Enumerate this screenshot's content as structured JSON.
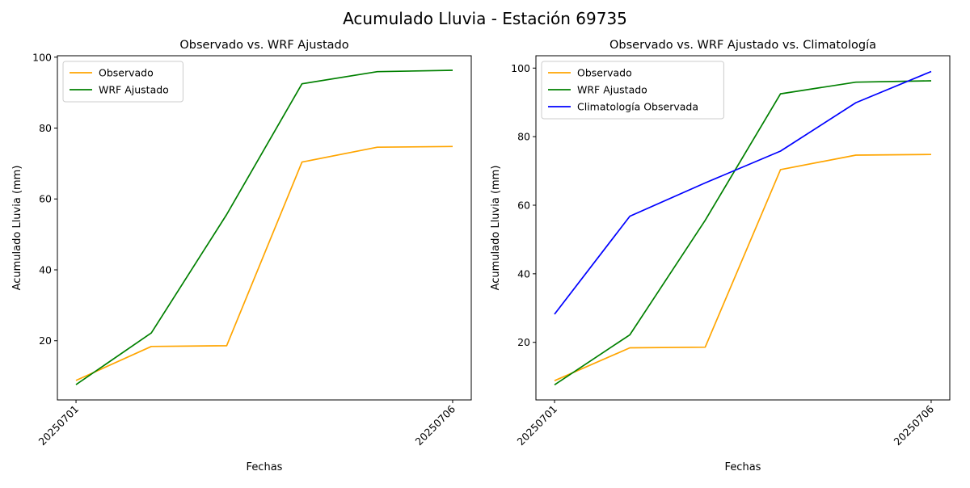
{
  "title": "Acumulado Lluvia - Estación 69735",
  "chart_data": [
    {
      "type": "line",
      "title": "Observado vs. WRF Ajustado",
      "xlabel": "Fechas",
      "ylabel": "Acumulado Lluvia (mm)",
      "x": [
        "20250701",
        "20250702",
        "20250703",
        "20250704",
        "20250705",
        "20250706"
      ],
      "xticks": [
        "20250701",
        "20250706"
      ],
      "yticks": [
        20,
        40,
        60,
        80,
        100
      ],
      "ylim": [
        3.3,
        100.4
      ],
      "legend_position": "upper-left",
      "series": [
        {
          "name": "Observado",
          "color": "#ffa500",
          "values": [
            8.8,
            18.4,
            18.6,
            70.4,
            74.6,
            74.8
          ]
        },
        {
          "name": "WRF Ajustado",
          "color": "#008000",
          "values": [
            7.6,
            22.2,
            55.6,
            92.5,
            95.9,
            96.3
          ]
        }
      ]
    },
    {
      "type": "line",
      "title": "Observado vs. WRF Ajustado vs. Climatología",
      "xlabel": "Fechas",
      "ylabel": "Acumulado Lluvia (mm)",
      "x": [
        "20250701",
        "20250702",
        "20250703",
        "20250704",
        "20250705",
        "20250706"
      ],
      "xticks": [
        "20250701",
        "20250706"
      ],
      "yticks": [
        20,
        40,
        60,
        80,
        100
      ],
      "ylim": [
        3.2,
        103.6
      ],
      "legend_position": "upper-left",
      "series": [
        {
          "name": "Observado",
          "color": "#ffa500",
          "values": [
            8.8,
            18.4,
            18.6,
            70.4,
            74.6,
            74.8
          ]
        },
        {
          "name": "WRF Ajustado",
          "color": "#008000",
          "values": [
            7.6,
            22.2,
            55.6,
            92.5,
            95.9,
            96.3
          ]
        },
        {
          "name": "Climatología Observada",
          "color": "#0000ff",
          "values": [
            28.2,
            56.8,
            66.5,
            75.8,
            89.9,
            99.0
          ]
        }
      ]
    }
  ]
}
